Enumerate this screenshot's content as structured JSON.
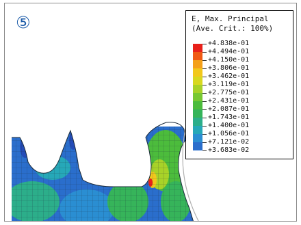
{
  "panel_number": "⑤",
  "legend": {
    "title_line1": "E, Max. Principal",
    "title_line2": "(Ave. Crit.: 100%)",
    "entries": [
      {
        "label": "+4.838e-01",
        "color": "#e8201a"
      },
      {
        "label": "+4.494e-01",
        "color": "#f05a14"
      },
      {
        "label": "+4.150e-01",
        "color": "#f4a01a"
      },
      {
        "label": "+3.806e-01",
        "color": "#f2c81c"
      },
      {
        "label": "+3.462e-01",
        "color": "#d8d820"
      },
      {
        "label": "+3.119e-01",
        "color": "#a8d228"
      },
      {
        "label": "+2.775e-01",
        "color": "#78c832"
      },
      {
        "label": "+2.431e-01",
        "color": "#4cbc3c"
      },
      {
        "label": "+2.087e-01",
        "color": "#36b45a"
      },
      {
        "label": "+1.743e-01",
        "color": "#2cae8a"
      },
      {
        "label": "+1.400e-01",
        "color": "#26a8b8"
      },
      {
        "label": "+1.056e-01",
        "color": "#2a8ed2"
      },
      {
        "label": "+7.121e-02",
        "color": "#2a6ecc"
      },
      {
        "label": "+3.683e-02",
        "color": "#244cb8"
      }
    ]
  }
}
